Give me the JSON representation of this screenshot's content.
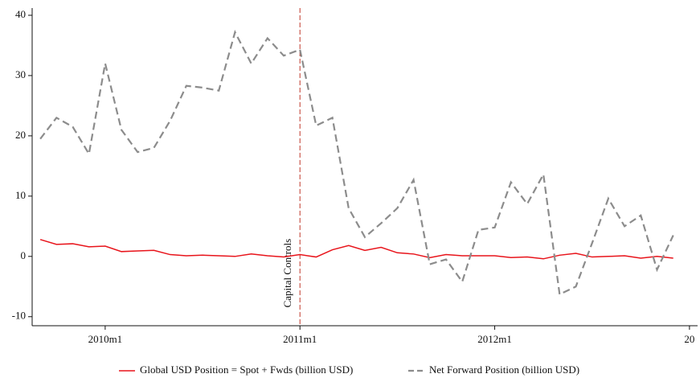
{
  "chart_data": {
    "type": "line",
    "x": [
      596,
      597,
      598,
      599,
      600,
      601,
      602,
      603,
      604,
      605,
      606,
      607,
      608,
      609,
      610,
      611,
      612,
      613,
      614,
      615,
      616,
      617,
      618,
      619,
      620,
      621,
      622,
      623,
      624,
      625,
      626,
      627,
      628,
      629,
      630,
      631,
      632,
      633,
      634,
      635
    ],
    "series": [
      {
        "name": "Global USD Position = Spot + Fwds (billion USD)",
        "color": "#e8141b",
        "dash": false,
        "values": [
          2.8,
          2.0,
          2.1,
          1.6,
          1.7,
          0.8,
          0.9,
          1.0,
          0.3,
          0.1,
          0.2,
          0.1,
          0.0,
          0.4,
          0.1,
          -0.1,
          0.3,
          -0.1,
          1.1,
          1.8,
          1.0,
          1.5,
          0.6,
          0.4,
          -0.2,
          0.3,
          0.1,
          0.1,
          0.1,
          -0.2,
          -0.1,
          -0.4,
          0.2,
          0.5,
          -0.1,
          0.0,
          0.1,
          -0.3,
          0.0,
          -0.3
        ]
      },
      {
        "name": "Net Forward Position (billion USD)",
        "color": "#8c8c8c",
        "dash": true,
        "values": [
          19.5,
          23,
          21.5,
          17,
          32,
          21,
          17.3,
          18,
          22.5,
          28.3,
          28,
          27.5,
          37.2,
          32,
          36.2,
          33.3,
          34.3,
          21.7,
          23,
          8,
          3.2,
          5.5,
          8,
          12.7,
          -1.3,
          -0.5,
          -4.2,
          4.4,
          4.8,
          12.3,
          8.7,
          13.6,
          -6.3,
          -5,
          2.2,
          9.6,
          5,
          6.8,
          -2.2,
          3.5
        ]
      }
    ],
    "xlim": [
      595.5,
      636.5
    ],
    "xticks": [
      {
        "value": 600,
        "label": "2010m1"
      },
      {
        "value": 612,
        "label": "2011m1"
      },
      {
        "value": 624,
        "label": "2012m1"
      },
      {
        "value": 636,
        "label": "20"
      }
    ],
    "ylim": [
      -11.5,
      41.2
    ],
    "yticks": [
      -10,
      0,
      10,
      20,
      30,
      40
    ],
    "grid": false,
    "legend": "bottom",
    "annotations": [
      {
        "text": "Capital Controls",
        "x": 612,
        "color": "#c0392b"
      }
    ]
  }
}
